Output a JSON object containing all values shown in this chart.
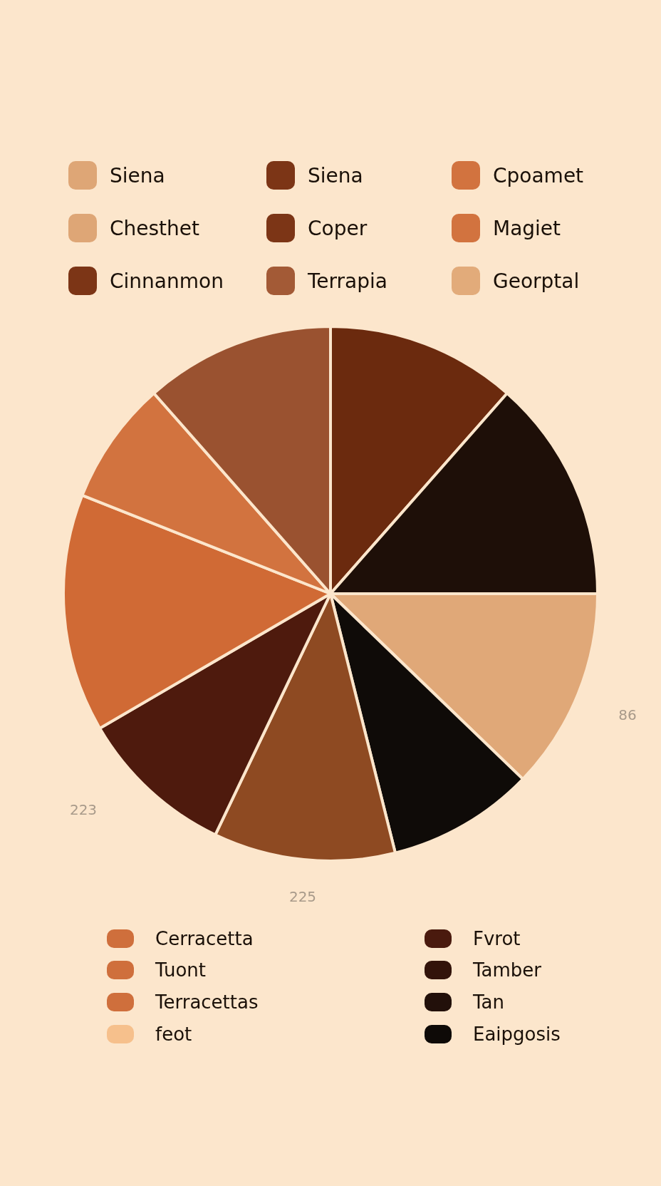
{
  "chart_data": {
    "type": "pie",
    "categories": [
      null,
      null,
      null,
      null,
      null,
      null,
      null,
      null,
      null
    ],
    "values": [
      11.5,
      13.5,
      12.2,
      8.9,
      11.0,
      9.5,
      14.4,
      7.5,
      11.5
    ],
    "colors": [
      "#6b2a0e",
      "#1e0f08",
      "#e0a878",
      "#0f0b08",
      "#8e4a22",
      "#4e1a0d",
      "#d06a35",
      "#d2733f",
      "#9a5230"
    ],
    "legend": false,
    "annotations": [
      "Siena",
      "Siena",
      "Cpoamet",
      "Chesthet",
      "Coper",
      "Magiet",
      "Cinnanmon",
      "Terrapia",
      "Georptal",
      "Cerracetta",
      "Tuont",
      "Terracettas",
      "feot",
      "Fvrot",
      "Tamber",
      "Tan",
      "Eaipgosis",
      "223",
      "225",
      "86"
    ]
  }
}
